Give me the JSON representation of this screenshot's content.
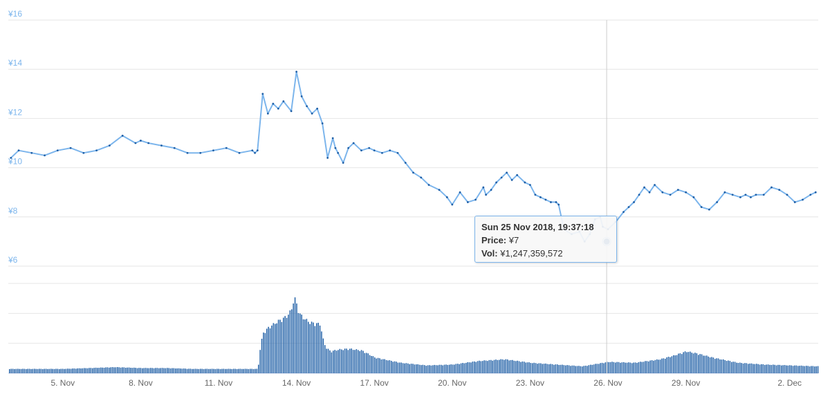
{
  "chart_data": {
    "type": "line",
    "title": "",
    "xlabel": "",
    "ylabel": "",
    "y_axis": {
      "ticks": [
        "¥6",
        "¥8",
        "¥10",
        "¥12",
        "¥14",
        "¥16"
      ],
      "range": [
        6,
        16
      ],
      "grid": true
    },
    "x_axis": {
      "ticks": [
        "5. Nov",
        "8. Nov",
        "11. Nov",
        "14. Nov",
        "17. Nov",
        "20. Nov",
        "23. Nov",
        "26. Nov",
        "29. Nov",
        "2. Dec"
      ],
      "tick_days": [
        5,
        8,
        11,
        14,
        17,
        20,
        23,
        26,
        29,
        33
      ],
      "range_days": [
        2.9,
        34.1
      ],
      "date_origin": "2018-11-00"
    },
    "accent_color": "#7cb5ec",
    "marker_color": "#1f5fa6",
    "series": [
      {
        "kind": "price",
        "x": [
          3.0,
          3.3,
          3.8,
          4.3,
          4.8,
          5.3,
          5.8,
          6.3,
          6.8,
          7.3,
          7.8,
          8.0,
          8.3,
          8.8,
          9.3,
          9.8,
          10.3,
          10.8,
          11.3,
          11.8,
          12.3,
          12.4,
          12.5,
          12.7,
          12.9,
          13.1,
          13.3,
          13.5,
          13.8,
          14.0,
          14.2,
          14.4,
          14.6,
          14.8,
          15.0,
          15.2,
          15.4,
          15.5,
          15.6,
          15.8,
          16.0,
          16.2,
          16.5,
          16.8,
          17.0,
          17.3,
          17.6,
          17.9,
          18.2,
          18.5,
          18.8,
          19.1,
          19.5,
          19.8,
          20.0,
          20.3,
          20.6,
          20.9,
          21.2,
          21.3,
          21.5,
          21.7,
          21.9,
          22.1,
          22.3,
          22.5,
          22.8,
          23.0,
          23.2,
          23.4,
          23.6,
          23.8,
          24.0,
          24.1,
          24.3,
          24.6,
          24.9,
          25.1,
          25.3,
          25.5,
          25.7,
          25.8,
          26.0,
          26.3,
          26.6,
          26.8,
          27.0,
          27.2,
          27.4,
          27.6,
          27.8,
          28.1,
          28.4,
          28.7,
          29.0,
          29.3,
          29.6,
          29.9,
          30.2,
          30.5,
          30.8,
          31.1,
          31.3,
          31.5,
          31.7,
          32.0,
          32.3,
          32.6,
          32.9,
          33.2,
          33.5,
          33.8,
          34.0
        ],
        "y": [
          10.4,
          10.7,
          10.6,
          10.5,
          10.7,
          10.8,
          10.6,
          10.7,
          10.9,
          11.3,
          11.0,
          11.1,
          11.0,
          10.9,
          10.8,
          10.6,
          10.6,
          10.7,
          10.8,
          10.6,
          10.7,
          10.6,
          10.7,
          13.0,
          12.2,
          12.6,
          12.4,
          12.7,
          12.3,
          13.9,
          12.9,
          12.5,
          12.2,
          12.4,
          11.8,
          10.4,
          11.2,
          10.8,
          10.6,
          10.2,
          10.8,
          11.0,
          10.7,
          10.8,
          10.7,
          10.6,
          10.7,
          10.6,
          10.2,
          9.8,
          9.6,
          9.3,
          9.1,
          8.8,
          8.5,
          9.0,
          8.6,
          8.7,
          9.2,
          8.9,
          9.1,
          9.4,
          9.6,
          9.8,
          9.5,
          9.7,
          9.4,
          9.3,
          8.9,
          8.8,
          8.7,
          8.6,
          8.6,
          8.5,
          7.5,
          7.3,
          7.4,
          7.0,
          7.3,
          7.9,
          8.0,
          7.6,
          7.5,
          7.8,
          8.2,
          8.4,
          8.6,
          8.9,
          9.2,
          9.0,
          9.3,
          9.0,
          8.9,
          9.1,
          9.0,
          8.8,
          8.4,
          8.3,
          8.6,
          9.0,
          8.9,
          8.8,
          8.9,
          8.8,
          8.9,
          8.9,
          9.2,
          9.1,
          8.9,
          8.6,
          8.7,
          8.9,
          9.0
        ]
      },
      {
        "kind": "volume",
        "x": [
          3.0,
          4.0,
          5.0,
          6.0,
          7.0,
          8.0,
          9.0,
          10.0,
          11.0,
          12.0,
          12.5,
          12.6,
          12.7,
          12.9,
          13.1,
          13.3,
          13.5,
          13.7,
          13.8,
          13.9,
          14.0,
          14.1,
          14.3,
          14.5,
          14.7,
          14.9,
          15.0,
          15.1,
          15.3,
          15.6,
          16.0,
          16.5,
          17.0,
          18.0,
          19.0,
          20.0,
          21.0,
          22.0,
          23.0,
          24.0,
          25.0,
          26.0,
          27.0,
          28.0,
          28.5,
          29.0,
          29.5,
          30.0,
          31.0,
          32.0,
          33.0,
          34.0
        ],
        "y": [
          0.05,
          0.05,
          0.05,
          0.06,
          0.07,
          0.06,
          0.06,
          0.05,
          0.05,
          0.05,
          0.05,
          0.32,
          0.46,
          0.52,
          0.56,
          0.6,
          0.63,
          0.68,
          0.74,
          0.87,
          0.78,
          0.68,
          0.62,
          0.58,
          0.57,
          0.56,
          0.4,
          0.3,
          0.25,
          0.27,
          0.28,
          0.26,
          0.18,
          0.12,
          0.09,
          0.1,
          0.14,
          0.16,
          0.12,
          0.1,
          0.08,
          0.13,
          0.12,
          0.16,
          0.2,
          0.25,
          0.22,
          0.18,
          0.12,
          0.1,
          0.09,
          0.08
        ]
      }
    ],
    "tooltip": {
      "date": "Sun 25 Nov 2018, 19:37:18",
      "price_label": "Price:",
      "price_value": "¥7",
      "vol_label": "Vol:",
      "vol_value": "¥1,247,359,572",
      "x": 25.95,
      "y": 7.0
    }
  }
}
